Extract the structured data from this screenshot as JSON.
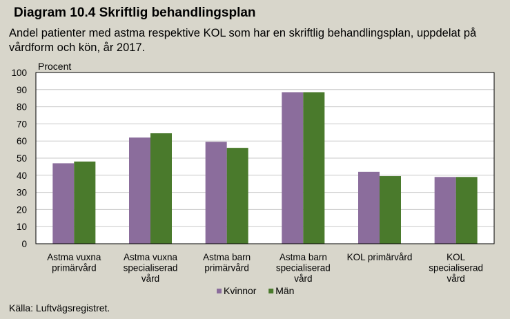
{
  "title": "Diagram 10.4 Skriftlig behandlingsplan",
  "subtitle": "Andel patienter med astma respektive KOL som har en skriftlig behandlingsplan, uppdelat på vårdform och kön, år 2017.",
  "source": "Källa: Luftvägsregistret.",
  "chart_data": {
    "type": "bar",
    "ylabel": "Procent",
    "ylim": [
      0,
      100
    ],
    "yticks": [
      "0",
      "10",
      "20",
      "30",
      "40",
      "50",
      "60",
      "70",
      "80",
      "90",
      "100"
    ],
    "grid": true,
    "legend_position": "bottom",
    "categories": [
      [
        "Astma vuxna",
        "primärvård"
      ],
      [
        "Astma vuxna",
        "specialiserad",
        "vård"
      ],
      [
        "Astma barn",
        "primärvård"
      ],
      [
        "Astma barn",
        "specialiserad",
        "vård"
      ],
      [
        "KOL primärvård"
      ],
      [
        "KOL",
        "specialiserad",
        "vård"
      ]
    ],
    "series": [
      {
        "name": "Kvinnor",
        "color": "#8b6d9c",
        "values": [
          47,
          62,
          59.5,
          88.5,
          42,
          39
        ]
      },
      {
        "name": "Män",
        "color": "#4a7a2c",
        "values": [
          48,
          64.5,
          56,
          88.5,
          39.5,
          39
        ]
      }
    ]
  }
}
